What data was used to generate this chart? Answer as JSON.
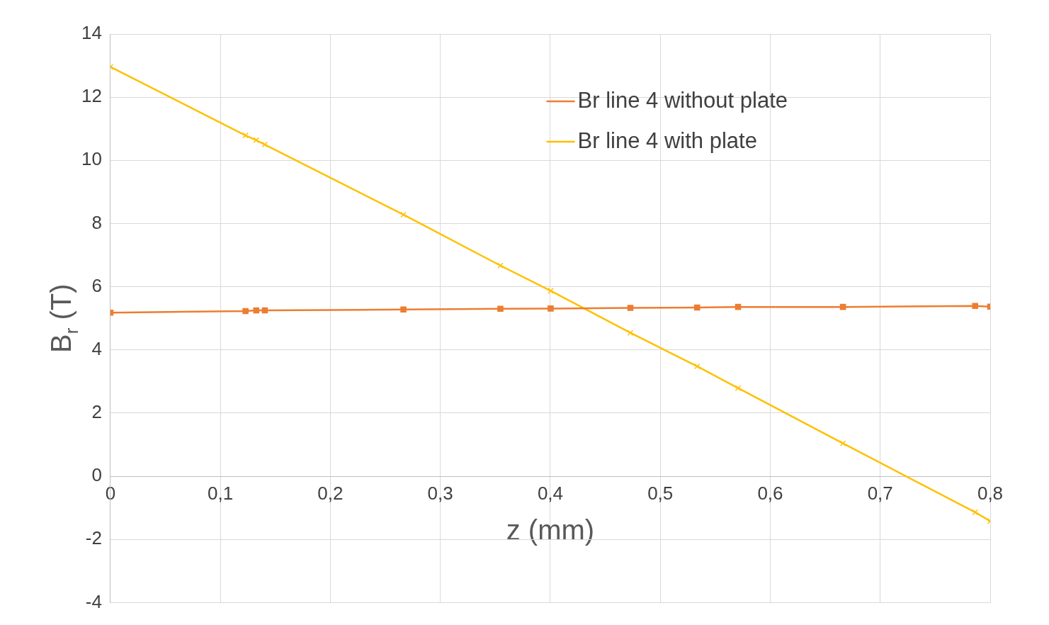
{
  "chart_data": {
    "type": "line",
    "xlabel": "z (mm)",
    "ylabel": "B$_{r}$ (T)",
    "xlim": [
      0,
      0.8
    ],
    "ylim": [
      -4,
      14
    ],
    "xticks": [
      0,
      {
        "value": 0.1,
        "label": "0,1"
      },
      {
        "value": 0.2,
        "label": "0,2"
      },
      {
        "value": 0.3,
        "label": "0,3"
      },
      {
        "value": 0.4,
        "label": "0,4"
      },
      {
        "value": 0.5,
        "label": "0,5"
      },
      {
        "value": 0.6,
        "label": "0,6"
      },
      {
        "value": 0.7,
        "label": "0,7"
      },
      {
        "value": 0.8,
        "label": "0,8"
      }
    ],
    "yticks": [
      -4,
      -2,
      0,
      2,
      4,
      6,
      8,
      10,
      12,
      14
    ],
    "grid": true,
    "legend": "top right",
    "line_style": "solid",
    "series": [
      {
        "name": "Br line 4 without plate",
        "color": "#ed7d31",
        "marker": "square",
        "x": [
          0,
          0.1228,
          0.1326,
          0.1404,
          0.2664,
          0.3546,
          0.4003,
          0.4728,
          0.5335,
          0.5707,
          0.6661,
          0.7863,
          0.8
        ],
        "values": [
          5.18,
          5.23,
          5.25,
          5.25,
          5.28,
          5.3,
          5.31,
          5.33,
          5.34,
          5.36,
          5.36,
          5.39,
          5.37
        ]
      },
      {
        "name": "Br line 4 with plate",
        "color": "#ffc000",
        "marker": "cross",
        "x": [
          0,
          0.1228,
          0.1326,
          0.1404,
          0.2664,
          0.3546,
          0.4003,
          0.4728,
          0.5335,
          0.5707,
          0.6661,
          0.7863,
          0.8
        ],
        "values": [
          12.96,
          10.79,
          10.64,
          10.5,
          8.28,
          6.67,
          5.87,
          4.54,
          3.48,
          2.79,
          1.04,
          -1.14,
          -1.42
        ]
      }
    ]
  }
}
